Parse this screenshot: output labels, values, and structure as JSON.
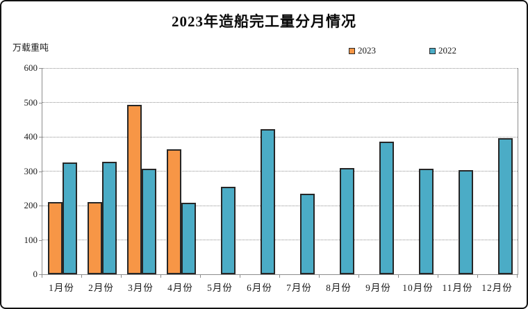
{
  "title": "2023年造船完工量分月情况",
  "unit_label": "万载重吨",
  "colors": {
    "series_2023": "#F79646",
    "series_2022": "#4BACC6",
    "bar_border": "#262626"
  },
  "chart_data": {
    "type": "bar",
    "title": "2023年造船完工量分月情况",
    "ylabel": "万载重吨",
    "categories": [
      "1月份",
      "2月份",
      "3月份",
      "4月份",
      "5月份",
      "6月份",
      "7月份",
      "8月份",
      "9月份",
      "10月份",
      "11月份",
      "12月份"
    ],
    "series": [
      {
        "name": "2023",
        "color": "#F79646",
        "values": [
          210,
          210,
          493,
          363,
          null,
          null,
          null,
          null,
          null,
          null,
          null,
          null
        ]
      },
      {
        "name": "2022",
        "color": "#4BACC6",
        "values": [
          325,
          328,
          308,
          208,
          255,
          422,
          234,
          309,
          386,
          308,
          304,
          396
        ]
      }
    ],
    "ylim": [
      0,
      600
    ],
    "ytick_step": 100,
    "grid": "horizontal-dotted",
    "legend_position": "top-right"
  }
}
